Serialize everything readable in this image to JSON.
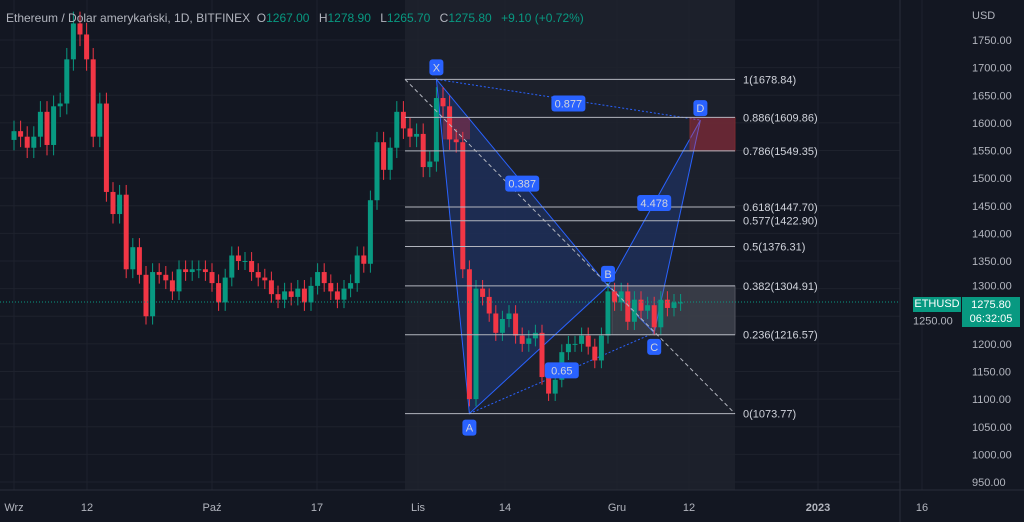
{
  "header": {
    "symbol": "Ethereum / Dolar amerykański, 1D, BITFINEX",
    "o_label": "O",
    "o": "1267.00",
    "h_label": "H",
    "h": "1278.90",
    "l_label": "L",
    "l": "1265.70",
    "c_label": "C",
    "c": "1275.80",
    "change": "+9.10 (+0.72%)"
  },
  "price_tag": {
    "symbol": "ETHUSD",
    "price": "1275.80",
    "countdown": "06:32:05"
  },
  "colors": {
    "up": "#089981",
    "down": "#f23645",
    "bg": "#131722",
    "accent": "#2962ff"
  },
  "chart_data": {
    "type": "candlestick",
    "currency": "USD",
    "y_ticks": [
      "1750.00",
      "1700.00",
      "1650.00",
      "1600.00",
      "1550.00",
      "1500.00",
      "1450.00",
      "1400.00",
      "1350.00",
      "1300.00",
      "1250.00",
      "1200.00",
      "1150.00",
      "1100.00",
      "1050.00",
      "1000.00",
      "950.00"
    ],
    "ylim": [
      950,
      1750
    ],
    "x_ticks": [
      "Wrz",
      "12",
      "Paź",
      "17",
      "Lis",
      "14",
      "Gru",
      "12",
      "2023",
      "16"
    ],
    "x_start": "2022-09-01",
    "closes": [
      1585,
      1575,
      1555,
      1575,
      1620,
      1560,
      1630,
      1635,
      1715,
      1780,
      1760,
      1715,
      1575,
      1635,
      1475,
      1435,
      1470,
      1335,
      1375,
      1325,
      1250,
      1330,
      1325,
      1315,
      1295,
      1335,
      1330,
      1335,
      1335,
      1330,
      1310,
      1275,
      1320,
      1360,
      1350,
      1350,
      1330,
      1320,
      1315,
      1290,
      1280,
      1295,
      1285,
      1300,
      1275,
      1305,
      1330,
      1310,
      1295,
      1280,
      1300,
      1310,
      1360,
      1345,
      1460,
      1565,
      1515,
      1555,
      1620,
      1590,
      1575,
      1580,
      1520,
      1530,
      1645,
      1630,
      1570,
      1565,
      1335,
      1100,
      1300,
      1285,
      1255,
      1220,
      1245,
      1255,
      1215,
      1200,
      1210,
      1220,
      1140,
      1110,
      1135,
      1185,
      1200,
      1200,
      1215,
      1195,
      1170,
      1215,
      1295,
      1275,
      1295,
      1240,
      1280,
      1260,
      1270,
      1230,
      1280,
      1265,
      1275,
      1275
    ],
    "fib_levels": [
      {
        "label": "1(1678.84)",
        "v": 1678.84
      },
      {
        "label": "0.886(1609.86)",
        "v": 1609.86
      },
      {
        "label": "0.786(1549.35)",
        "v": 1549.35
      },
      {
        "label": "0.618(1447.70)",
        "v": 1447.7
      },
      {
        "label": "0.577(1422.90)",
        "v": 1422.9
      },
      {
        "label": "0.5(1376.31)",
        "v": 1376.31
      },
      {
        "label": "0.382(1304.91)",
        "v": 1304.91
      },
      {
        "label": "0.236(1216.57)",
        "v": 1216.57
      },
      {
        "label": "0(1073.77)",
        "v": 1073.77
      }
    ],
    "pattern_points": [
      {
        "label": "X",
        "day": 64,
        "v": 1678.84
      },
      {
        "label": "A",
        "day": 69,
        "v": 1073.77
      },
      {
        "label": "B",
        "day": 90,
        "v": 1304.91
      },
      {
        "label": "C",
        "day": 97,
        "v": 1220
      },
      {
        "label": "D",
        "day": 104,
        "v": 1605
      }
    ],
    "ratios": [
      {
        "label": "0.877",
        "day": 84,
        "v": 1635
      },
      {
        "label": "0.387",
        "day": 77,
        "v": 1490
      },
      {
        "label": "4.478",
        "day": 97,
        "v": 1455
      },
      {
        "label": "0.65",
        "day": 83,
        "v": 1152
      }
    ]
  }
}
